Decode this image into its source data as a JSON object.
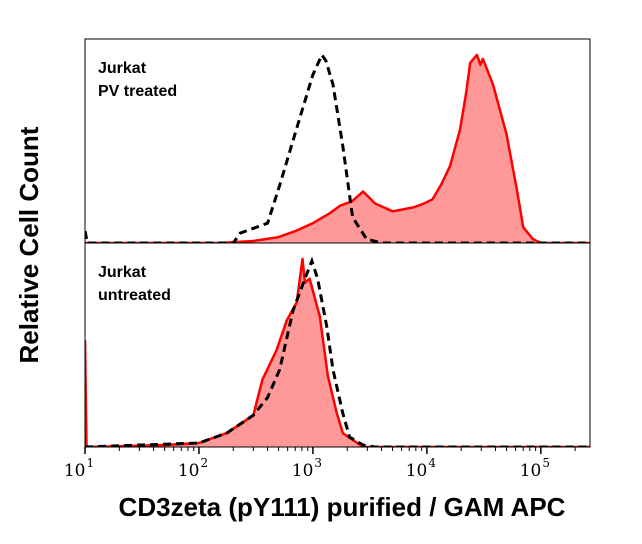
{
  "chart_data": {
    "type": "area",
    "xlabel": "CD3zeta (pY111) purified / GAM APC",
    "ylabel": "Relative Cell Count",
    "xscale": "log",
    "xlim": [
      10,
      270000
    ],
    "ylim": [
      0,
      100
    ],
    "x_tick_labels": [
      {
        "value": 10,
        "base": "10",
        "exp": "1"
      },
      {
        "value": 100,
        "base": "10",
        "exp": "2"
      },
      {
        "value": 1000,
        "base": "10",
        "exp": "3"
      },
      {
        "value": 10000,
        "base": "10",
        "exp": "4"
      },
      {
        "value": 100000,
        "base": "10",
        "exp": "5"
      }
    ],
    "grid": false,
    "colors": {
      "sample_fill": "#ff9999",
      "sample_line": "#ff0000",
      "control_line": "#000000"
    },
    "panels": [
      {
        "label_lines": [
          "Jurkat",
          "PV treated"
        ],
        "series": [
          {
            "style": "filled-red",
            "points": [
              [
                10,
                0
              ],
              [
                150,
                0
              ],
              [
                300,
                1
              ],
              [
                500,
                3
              ],
              [
                700,
                6
              ],
              [
                1000,
                10
              ],
              [
                1400,
                15
              ],
              [
                1750,
                19
              ],
              [
                2200,
                21
              ],
              [
                2750,
                26
              ],
              [
                3500,
                20
              ],
              [
                5000,
                16
              ],
              [
                7600,
                18
              ],
              [
                9500,
                20
              ],
              [
                11200,
                22
              ],
              [
                13500,
                30
              ],
              [
                16000,
                39
              ],
              [
                19500,
                57
              ],
              [
                22000,
                75
              ],
              [
                24000,
                91
              ],
              [
                27500,
                95
              ],
              [
                29500,
                90
              ],
              [
                31000,
                93
              ],
              [
                38000,
                80
              ],
              [
                50000,
                55
              ],
              [
                62000,
                26
              ],
              [
                70000,
                8
              ],
              [
                85000,
                2
              ],
              [
                100000,
                0
              ],
              [
                270000,
                0
              ]
            ]
          },
          {
            "style": "dashed-black",
            "points": [
              [
                10,
                6
              ],
              [
                10.5,
                0
              ],
              [
                200,
                0
              ],
              [
                230,
                5
              ],
              [
                400,
                10
              ],
              [
                510,
                29
              ],
              [
                775,
                64
              ],
              [
                1000,
                85
              ],
              [
                1200,
                95
              ],
              [
                1300,
                92
              ],
              [
                1500,
                80
              ],
              [
                1830,
                49
              ],
              [
                2230,
                13
              ],
              [
                2950,
                2
              ],
              [
                4000,
                0
              ],
              [
                270000,
                0
              ]
            ]
          }
        ]
      },
      {
        "label_lines": [
          "Jurkat",
          "untreated"
        ],
        "series": [
          {
            "style": "filled-red",
            "points": [
              [
                10,
                54
              ],
              [
                10.3,
                0
              ],
              [
                50,
                1
              ],
              [
                100,
                2
              ],
              [
                175,
                7
              ],
              [
                300,
                16
              ],
              [
                360,
                34
              ],
              [
                480,
                49
              ],
              [
                590,
                64
              ],
              [
                720,
                73
              ],
              [
                810,
                95
              ],
              [
                850,
                83
              ],
              [
                935,
                85
              ],
              [
                1150,
                66
              ],
              [
                1350,
                36
              ],
              [
                1620,
                17
              ],
              [
                1830,
                7
              ],
              [
                2450,
                2
              ],
              [
                2800,
                0
              ],
              [
                270000,
                0
              ]
            ]
          },
          {
            "style": "dashed-black",
            "points": [
              [
                10,
                0
              ],
              [
                100,
                2
              ],
              [
                175,
                7
              ],
              [
                300,
                16
              ],
              [
                400,
                25
              ],
              [
                510,
                39
              ],
              [
                670,
                69
              ],
              [
                850,
                85
              ],
              [
                980,
                94
              ],
              [
                1100,
                85
              ],
              [
                1320,
                61
              ],
              [
                1500,
                39
              ],
              [
                1830,
                17
              ],
              [
                2100,
                5
              ],
              [
                2750,
                1
              ],
              [
                3500,
                0
              ],
              [
                270000,
                0
              ]
            ]
          }
        ]
      }
    ]
  }
}
